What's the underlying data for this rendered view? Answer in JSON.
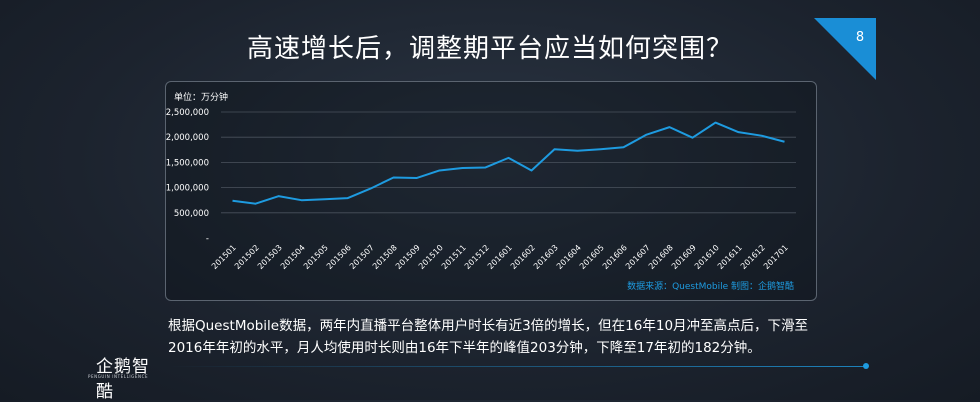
{
  "slide": {
    "title": "高速增长后，调整期平台应当如何突围？",
    "page_number": "8",
    "accent_color": "#1e9be0"
  },
  "chart_data": {
    "type": "line",
    "unit_label": "单位：万分钟",
    "source_label": "数据来源：QuestMobile 制图：企鹅智酷",
    "y_ticks": [
      "-",
      "500,000",
      "1,000,000",
      "1,500,000",
      "2,000,000",
      "2,500,000"
    ],
    "ylim": [
      0,
      2500000
    ],
    "grid": true,
    "categories": [
      "201501",
      "201502",
      "201503",
      "201504",
      "201505",
      "201506",
      "201507",
      "201508",
      "201509",
      "201510",
      "201511",
      "201512",
      "201601",
      "201602",
      "201603",
      "201604",
      "201605",
      "201606",
      "201607",
      "201608",
      "201609",
      "201610",
      "201611",
      "201612",
      "201701"
    ],
    "series": [
      {
        "values": [
          740000,
          680000,
          830000,
          750000,
          770000,
          790000,
          980000,
          1200000,
          1190000,
          1340000,
          1390000,
          1400000,
          1590000,
          1340000,
          1760000,
          1730000,
          1760000,
          1800000,
          2050000,
          2200000,
          1990000,
          2290000,
          2100000,
          2030000,
          1910000
        ],
        "color": "#1e9be0"
      }
    ]
  },
  "body_text": "根据QuestMobile数据，两年内直播平台整体用户时长有近3倍的增长，但在16年10月冲至高点后，下滑至2016年年初的水平，月人均使用时长则由16年下半年的峰值203分钟，下降至17年初的182分钟。",
  "logo": {
    "text": "企鹅智酷",
    "subtext": "PENGUIN INTELLIGENCE"
  }
}
